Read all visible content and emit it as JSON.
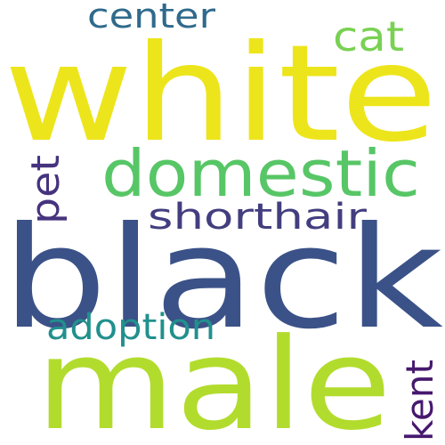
{
  "words": {
    "white": {
      "text": "white",
      "color": "#ede51b"
    },
    "black": {
      "text": "black",
      "color": "#3b5288"
    },
    "male": {
      "text": "male",
      "color": "#b2dc2d"
    },
    "domestic": {
      "text": "domestic",
      "color": "#57c666"
    },
    "shorthair": {
      "text": "shorthair",
      "color": "#433e7f"
    },
    "center": {
      "text": "center",
      "color": "#2f6a8c"
    },
    "cat": {
      "text": "cat",
      "color": "#79d152"
    },
    "pet": {
      "text": "pet",
      "color": "#46337e"
    },
    "adoption": {
      "text": "adoption",
      "color": "#21908d"
    },
    "kent": {
      "text": "kent",
      "color": "#46186e"
    }
  }
}
